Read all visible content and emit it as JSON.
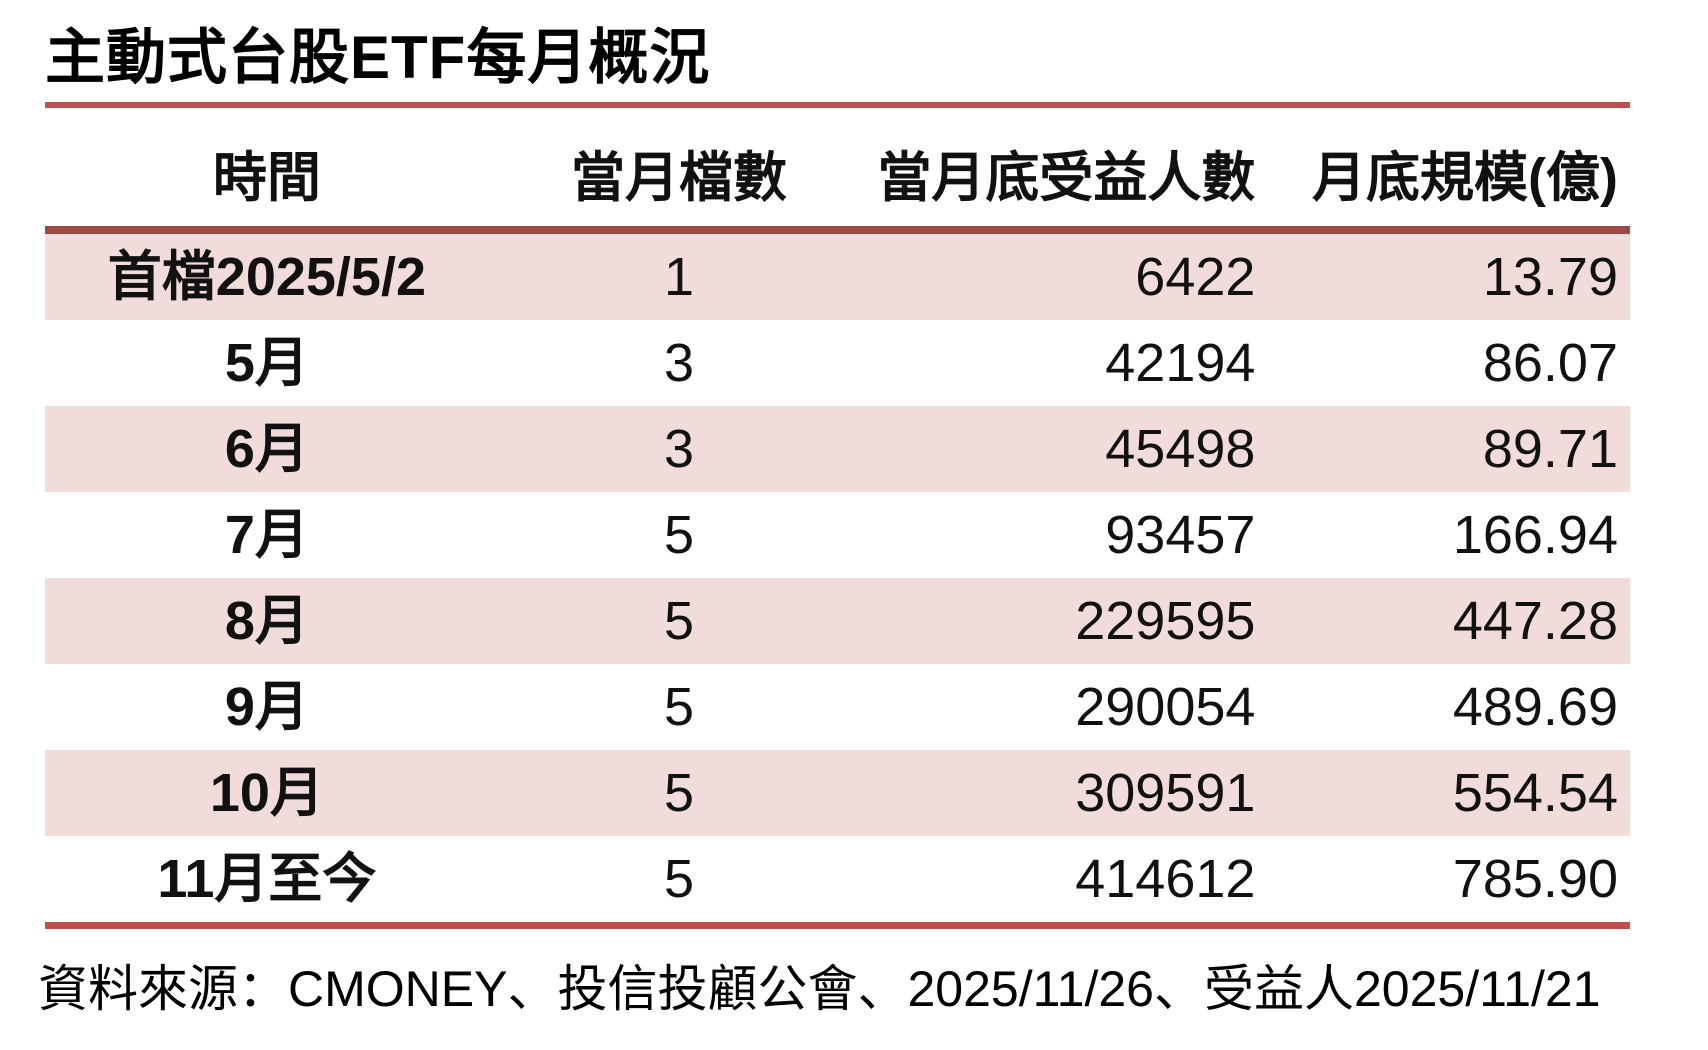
{
  "title": "主動式台股ETF每月概況",
  "source": "資料來源：CMONEY、投信投顧公會、2025/11/26、受益人2025/11/21",
  "colors": {
    "accent_red": "#C0504D",
    "header_rule_red": "#9D4A46",
    "row_stripe_pink": "#F2DCDB",
    "text": "#111111"
  },
  "table": {
    "columns": [
      "時間",
      "當月檔數",
      "當月底受益人數",
      "月底規模(億)"
    ],
    "rows": [
      [
        "首檔2025/5/2",
        "1",
        "6422",
        "13.79"
      ],
      [
        "5月",
        "3",
        "42194",
        "86.07"
      ],
      [
        "6月",
        "3",
        "45498",
        "89.71"
      ],
      [
        "7月",
        "5",
        "93457",
        "166.94"
      ],
      [
        "8月",
        "5",
        "229595",
        "447.28"
      ],
      [
        "9月",
        "5",
        "290054",
        "489.69"
      ],
      [
        "10月",
        "5",
        "309591",
        "554.54"
      ],
      [
        "11月至今",
        "5",
        "414612",
        "785.90"
      ]
    ]
  },
  "chart_data": {
    "type": "table",
    "title": "主動式台股ETF每月概況",
    "columns": [
      "時間",
      "當月檔數",
      "當月底受益人數",
      "月底規模(億)"
    ],
    "rows": [
      {
        "時間": "首檔2025/5/2",
        "當月檔數": 1,
        "當月底受益人數": 6422,
        "月底規模(億)": 13.79
      },
      {
        "時間": "5月",
        "當月檔數": 3,
        "當月底受益人數": 42194,
        "月底規模(億)": 86.07
      },
      {
        "時間": "6月",
        "當月檔數": 3,
        "當月底受益人數": 45498,
        "月底規模(億)": 89.71
      },
      {
        "時間": "7月",
        "當月檔數": 5,
        "當月底受益人數": 93457,
        "月底規模(億)": 166.94
      },
      {
        "時間": "8月",
        "當月檔數": 5,
        "當月底受益人數": 229595,
        "月底規模(億)": 447.28
      },
      {
        "時間": "9月",
        "當月檔數": 5,
        "當月底受益人數": 290054,
        "月底規模(億)": 489.69
      },
      {
        "時間": "10月",
        "當月檔數": 5,
        "當月底受益人數": 309591,
        "月底規模(億)": 554.54
      },
      {
        "時間": "11月至今",
        "當月檔數": 5,
        "當月底受益人數": 414612,
        "月底規模(億)": 785.9
      }
    ],
    "source": "資料來源：CMONEY、投信投顧公會、2025/11/26、受益人2025/11/21",
    "layout": {
      "striped_rows": "odd rows pink starting with first data row",
      "numeric_alignment": "right",
      "label_alignment": "center"
    }
  }
}
